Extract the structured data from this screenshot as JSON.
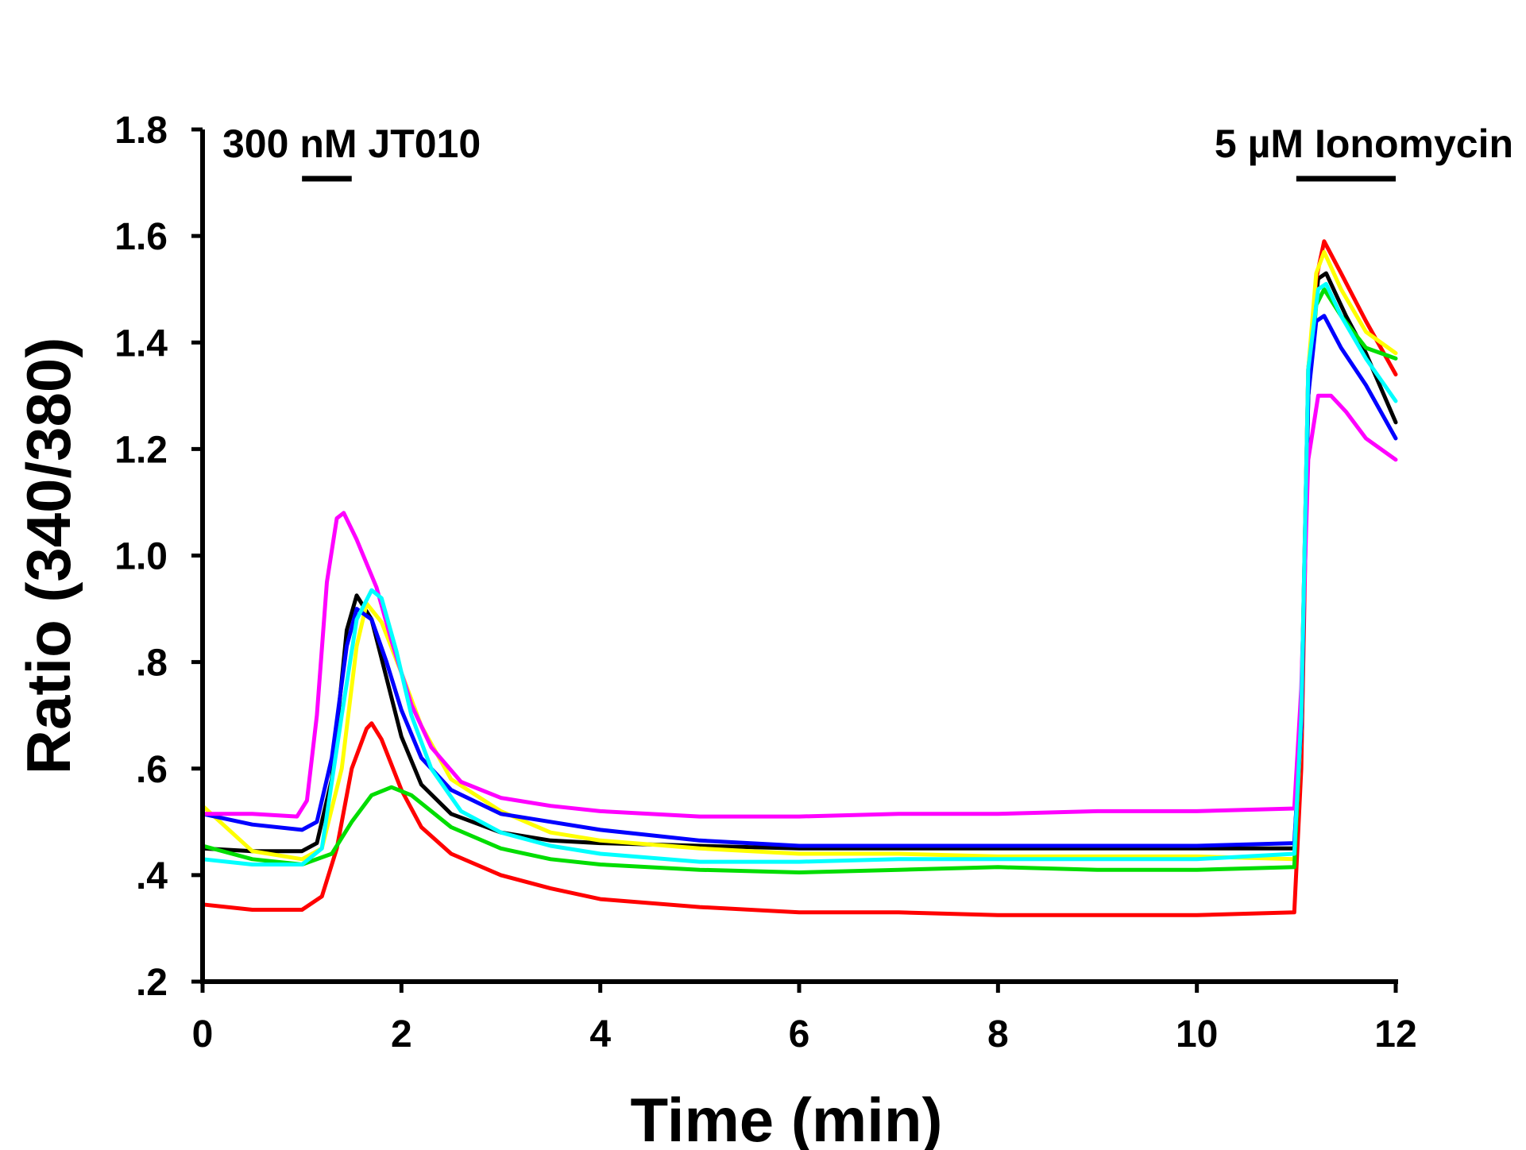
{
  "chart_data": {
    "type": "line",
    "xlabel": "Time (min)",
    "ylabel": "Ratio (340/380)",
    "xlim": [
      0,
      12
    ],
    "ylim": [
      0.2,
      1.8
    ],
    "x_ticks": [
      0,
      2,
      4,
      6,
      8,
      10,
      12
    ],
    "x_tick_labels": [
      "0",
      "2",
      "4",
      "6",
      "8",
      "10",
      "12"
    ],
    "y_ticks": [
      0.2,
      0.4,
      0.6,
      0.8,
      1.0,
      1.2,
      1.4,
      1.6,
      1.8
    ],
    "y_tick_labels": [
      ".2",
      ".4",
      ".6",
      ".8",
      "1.0",
      "1.2",
      "1.4",
      "1.6",
      "1.8"
    ],
    "grid": false,
    "legend": "none",
    "annotations": [
      {
        "label": "300 nM JT010",
        "x_start": 1.0,
        "x_end": 1.5
      },
      {
        "label": "5 µM Ionomycin",
        "x_start": 11.0,
        "x_end": 12.0
      }
    ],
    "series": [
      {
        "color": "#000000",
        "points": [
          [
            0,
            0.45
          ],
          [
            0.5,
            0.445
          ],
          [
            1.0,
            0.445
          ],
          [
            1.15,
            0.46
          ],
          [
            1.3,
            0.58
          ],
          [
            1.45,
            0.86
          ],
          [
            1.55,
            0.925
          ],
          [
            1.7,
            0.88
          ],
          [
            1.85,
            0.77
          ],
          [
            2.0,
            0.66
          ],
          [
            2.2,
            0.57
          ],
          [
            2.5,
            0.515
          ],
          [
            3.0,
            0.48
          ],
          [
            3.5,
            0.465
          ],
          [
            4.0,
            0.46
          ],
          [
            5.0,
            0.455
          ],
          [
            6.0,
            0.45
          ],
          [
            7.0,
            0.45
          ],
          [
            8.0,
            0.45
          ],
          [
            9.0,
            0.45
          ],
          [
            10.0,
            0.45
          ],
          [
            10.98,
            0.45
          ],
          [
            11.05,
            0.7
          ],
          [
            11.12,
            1.35
          ],
          [
            11.22,
            1.52
          ],
          [
            11.3,
            1.53
          ],
          [
            11.5,
            1.45
          ],
          [
            11.7,
            1.38
          ],
          [
            12.0,
            1.25
          ]
        ]
      },
      {
        "color": "#ff0000",
        "points": [
          [
            0,
            0.345
          ],
          [
            0.5,
            0.335
          ],
          [
            1.0,
            0.335
          ],
          [
            1.2,
            0.36
          ],
          [
            1.35,
            0.45
          ],
          [
            1.5,
            0.6
          ],
          [
            1.65,
            0.675
          ],
          [
            1.7,
            0.685
          ],
          [
            1.8,
            0.655
          ],
          [
            2.0,
            0.56
          ],
          [
            2.2,
            0.49
          ],
          [
            2.5,
            0.44
          ],
          [
            3.0,
            0.4
          ],
          [
            3.5,
            0.375
          ],
          [
            4.0,
            0.355
          ],
          [
            5.0,
            0.34
          ],
          [
            6.0,
            0.33
          ],
          [
            7.0,
            0.33
          ],
          [
            8.0,
            0.325
          ],
          [
            9.0,
            0.325
          ],
          [
            10.0,
            0.325
          ],
          [
            10.98,
            0.33
          ],
          [
            11.05,
            0.6
          ],
          [
            11.12,
            1.3
          ],
          [
            11.2,
            1.52
          ],
          [
            11.28,
            1.59
          ],
          [
            11.45,
            1.53
          ],
          [
            11.7,
            1.44
          ],
          [
            12.0,
            1.34
          ]
        ]
      },
      {
        "color": "#ffff00",
        "points": [
          [
            0,
            0.53
          ],
          [
            0.5,
            0.445
          ],
          [
            1.0,
            0.43
          ],
          [
            1.2,
            0.45
          ],
          [
            1.4,
            0.6
          ],
          [
            1.55,
            0.83
          ],
          [
            1.65,
            0.91
          ],
          [
            1.8,
            0.875
          ],
          [
            2.0,
            0.78
          ],
          [
            2.2,
            0.68
          ],
          [
            2.5,
            0.58
          ],
          [
            3.0,
            0.52
          ],
          [
            3.5,
            0.48
          ],
          [
            4.0,
            0.465
          ],
          [
            5.0,
            0.45
          ],
          [
            6.0,
            0.44
          ],
          [
            7.0,
            0.44
          ],
          [
            8.0,
            0.435
          ],
          [
            9.0,
            0.435
          ],
          [
            10.0,
            0.435
          ],
          [
            10.98,
            0.43
          ],
          [
            11.05,
            0.68
          ],
          [
            11.12,
            1.35
          ],
          [
            11.2,
            1.53
          ],
          [
            11.28,
            1.57
          ],
          [
            11.45,
            1.5
          ],
          [
            11.7,
            1.42
          ],
          [
            12.0,
            1.38
          ]
        ]
      },
      {
        "color": "#00dd00",
        "points": [
          [
            0,
            0.455
          ],
          [
            0.5,
            0.43
          ],
          [
            1.0,
            0.42
          ],
          [
            1.3,
            0.44
          ],
          [
            1.5,
            0.5
          ],
          [
            1.7,
            0.55
          ],
          [
            1.9,
            0.565
          ],
          [
            2.1,
            0.55
          ],
          [
            2.5,
            0.49
          ],
          [
            3.0,
            0.45
          ],
          [
            3.5,
            0.43
          ],
          [
            4.0,
            0.42
          ],
          [
            5.0,
            0.41
          ],
          [
            6.0,
            0.405
          ],
          [
            7.0,
            0.41
          ],
          [
            8.0,
            0.415
          ],
          [
            9.0,
            0.41
          ],
          [
            10.0,
            0.41
          ],
          [
            10.98,
            0.415
          ],
          [
            11.05,
            0.7
          ],
          [
            11.12,
            1.3
          ],
          [
            11.2,
            1.47
          ],
          [
            11.28,
            1.5
          ],
          [
            11.45,
            1.45
          ],
          [
            11.7,
            1.39
          ],
          [
            12.0,
            1.37
          ]
        ]
      },
      {
        "color": "#0000ff",
        "points": [
          [
            0,
            0.515
          ],
          [
            0.5,
            0.495
          ],
          [
            1.0,
            0.485
          ],
          [
            1.15,
            0.5
          ],
          [
            1.3,
            0.62
          ],
          [
            1.45,
            0.83
          ],
          [
            1.55,
            0.9
          ],
          [
            1.7,
            0.88
          ],
          [
            1.85,
            0.8
          ],
          [
            2.0,
            0.71
          ],
          [
            2.2,
            0.62
          ],
          [
            2.5,
            0.56
          ],
          [
            3.0,
            0.515
          ],
          [
            3.5,
            0.5
          ],
          [
            4.0,
            0.485
          ],
          [
            5.0,
            0.465
          ],
          [
            6.0,
            0.455
          ],
          [
            7.0,
            0.455
          ],
          [
            8.0,
            0.455
          ],
          [
            9.0,
            0.455
          ],
          [
            10.0,
            0.455
          ],
          [
            10.98,
            0.46
          ],
          [
            11.05,
            0.68
          ],
          [
            11.12,
            1.3
          ],
          [
            11.2,
            1.44
          ],
          [
            11.28,
            1.45
          ],
          [
            11.45,
            1.39
          ],
          [
            11.7,
            1.32
          ],
          [
            12.0,
            1.22
          ]
        ]
      },
      {
        "color": "#ff00ff",
        "points": [
          [
            0,
            0.515
          ],
          [
            0.5,
            0.515
          ],
          [
            0.95,
            0.51
          ],
          [
            1.05,
            0.54
          ],
          [
            1.15,
            0.7
          ],
          [
            1.25,
            0.95
          ],
          [
            1.35,
            1.07
          ],
          [
            1.42,
            1.08
          ],
          [
            1.55,
            1.03
          ],
          [
            1.75,
            0.94
          ],
          [
            1.9,
            0.84
          ],
          [
            2.1,
            0.72
          ],
          [
            2.3,
            0.64
          ],
          [
            2.6,
            0.575
          ],
          [
            3.0,
            0.545
          ],
          [
            3.5,
            0.53
          ],
          [
            4.0,
            0.52
          ],
          [
            5.0,
            0.51
          ],
          [
            6.0,
            0.51
          ],
          [
            7.0,
            0.515
          ],
          [
            8.0,
            0.515
          ],
          [
            9.0,
            0.52
          ],
          [
            10.0,
            0.52
          ],
          [
            10.98,
            0.525
          ],
          [
            11.05,
            0.75
          ],
          [
            11.12,
            1.18
          ],
          [
            11.22,
            1.3
          ],
          [
            11.35,
            1.3
          ],
          [
            11.5,
            1.27
          ],
          [
            11.7,
            1.22
          ],
          [
            12.0,
            1.18
          ]
        ]
      },
      {
        "color": "#00ffff",
        "points": [
          [
            0,
            0.43
          ],
          [
            0.5,
            0.42
          ],
          [
            1.0,
            0.42
          ],
          [
            1.2,
            0.45
          ],
          [
            1.4,
            0.7
          ],
          [
            1.55,
            0.88
          ],
          [
            1.7,
            0.935
          ],
          [
            1.8,
            0.92
          ],
          [
            1.95,
            0.82
          ],
          [
            2.1,
            0.7
          ],
          [
            2.3,
            0.6
          ],
          [
            2.6,
            0.52
          ],
          [
            3.0,
            0.48
          ],
          [
            3.5,
            0.455
          ],
          [
            4.0,
            0.44
          ],
          [
            5.0,
            0.425
          ],
          [
            6.0,
            0.425
          ],
          [
            7.0,
            0.43
          ],
          [
            8.0,
            0.43
          ],
          [
            9.0,
            0.43
          ],
          [
            10.0,
            0.43
          ],
          [
            10.98,
            0.44
          ],
          [
            11.05,
            0.7
          ],
          [
            11.12,
            1.35
          ],
          [
            11.22,
            1.5
          ],
          [
            11.3,
            1.51
          ],
          [
            11.45,
            1.45
          ],
          [
            11.7,
            1.37
          ],
          [
            12.0,
            1.29
          ]
        ]
      }
    ]
  }
}
